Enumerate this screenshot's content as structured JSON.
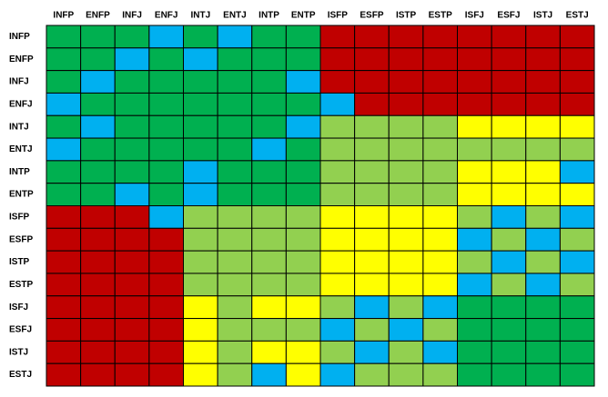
{
  "columns": [
    "INFP",
    "ENFP",
    "INFJ",
    "ENFJ",
    "INTJ",
    "ENTJ",
    "INTP",
    "ENTP",
    "ISFP",
    "ESFP",
    "ISTP",
    "ESTP",
    "ISFJ",
    "ESFJ",
    "ISTJ",
    "ESTJ"
  ],
  "rows": [
    {
      "label": "INFP",
      "cells": [
        "#00b050",
        "#00b050",
        "#00b050",
        "#00b0f0",
        "#00b050",
        "#00b0f0",
        "#00b050",
        "#00b050",
        "#c00000",
        "#c00000",
        "#c00000",
        "#c00000",
        "#c00000",
        "#c00000",
        "#c00000",
        "#c00000"
      ]
    },
    {
      "label": "ENFP",
      "cells": [
        "#00b050",
        "#00b050",
        "#00b0f0",
        "#00b050",
        "#00b0f0",
        "#00b050",
        "#00b050",
        "#00b050",
        "#c00000",
        "#c00000",
        "#c00000",
        "#c00000",
        "#c00000",
        "#c00000",
        "#c00000",
        "#c00000"
      ]
    },
    {
      "label": "INFJ",
      "cells": [
        "#00b050",
        "#00b0f0",
        "#00b050",
        "#00b050",
        "#00b050",
        "#00b050",
        "#00b050",
        "#00b0f0",
        "#c00000",
        "#c00000",
        "#c00000",
        "#c00000",
        "#c00000",
        "#c00000",
        "#c00000",
        "#c00000"
      ]
    },
    {
      "label": "ENFJ",
      "cells": [
        "#00b0f0",
        "#00b050",
        "#00b050",
        "#00b050",
        "#00b050",
        "#00b050",
        "#00b050",
        "#00b050",
        "#00b0f0",
        "#c00000",
        "#c00000",
        "#c00000",
        "#c00000",
        "#c00000",
        "#c00000",
        "#c00000"
      ]
    },
    {
      "label": "INTJ",
      "cells": [
        "#00b050",
        "#00b0f0",
        "#00b050",
        "#00b050",
        "#00b050",
        "#00b050",
        "#00b050",
        "#00b0f0",
        "#92d050",
        "#92d050",
        "#92d050",
        "#92d050",
        "#ffff00",
        "#ffff00",
        "#ffff00",
        "#ffff00"
      ]
    },
    {
      "label": "ENTJ",
      "cells": [
        "#00b0f0",
        "#00b050",
        "#00b050",
        "#00b050",
        "#00b050",
        "#00b050",
        "#00b0f0",
        "#00b050",
        "#92d050",
        "#92d050",
        "#92d050",
        "#92d050",
        "#92d050",
        "#92d050",
        "#92d050",
        "#92d050"
      ]
    },
    {
      "label": "INTP",
      "cells": [
        "#00b050",
        "#00b050",
        "#00b050",
        "#00b050",
        "#00b0f0",
        "#00b050",
        "#00b050",
        "#00b050",
        "#92d050",
        "#92d050",
        "#92d050",
        "#92d050",
        "#ffff00",
        "#ffff00",
        "#ffff00",
        "#00b0f0"
      ]
    },
    {
      "label": "ENTP",
      "cells": [
        "#00b050",
        "#00b050",
        "#00b0f0",
        "#00b050",
        "#00b0f0",
        "#00b050",
        "#00b050",
        "#00b050",
        "#92d050",
        "#92d050",
        "#92d050",
        "#92d050",
        "#ffff00",
        "#ffff00",
        "#ffff00",
        "#ffff00"
      ]
    },
    {
      "label": "ISFP",
      "cells": [
        "#c00000",
        "#c00000",
        "#c00000",
        "#00b0f0",
        "#92d050",
        "#92d050",
        "#92d050",
        "#92d050",
        "#ffff00",
        "#ffff00",
        "#ffff00",
        "#ffff00",
        "#92d050",
        "#00b0f0",
        "#92d050",
        "#00b0f0"
      ]
    },
    {
      "label": "ESFP",
      "cells": [
        "#c00000",
        "#c00000",
        "#c00000",
        "#c00000",
        "#92d050",
        "#92d050",
        "#92d050",
        "#92d050",
        "#ffff00",
        "#ffff00",
        "#ffff00",
        "#ffff00",
        "#00b0f0",
        "#92d050",
        "#00b0f0",
        "#92d050"
      ]
    },
    {
      "label": "ISTP",
      "cells": [
        "#c00000",
        "#c00000",
        "#c00000",
        "#c00000",
        "#92d050",
        "#92d050",
        "#92d050",
        "#92d050",
        "#ffff00",
        "#ffff00",
        "#ffff00",
        "#ffff00",
        "#92d050",
        "#00b0f0",
        "#92d050",
        "#00b0f0"
      ]
    },
    {
      "label": "ESTP",
      "cells": [
        "#c00000",
        "#c00000",
        "#c00000",
        "#c00000",
        "#92d050",
        "#92d050",
        "#92d050",
        "#92d050",
        "#ffff00",
        "#ffff00",
        "#ffff00",
        "#ffff00",
        "#00b0f0",
        "#92d050",
        "#00b0f0",
        "#92d050"
      ]
    },
    {
      "label": "ISFJ",
      "cells": [
        "#c00000",
        "#c00000",
        "#c00000",
        "#c00000",
        "#ffff00",
        "#92d050",
        "#ffff00",
        "#ffff00",
        "#92d050",
        "#00b0f0",
        "#92d050",
        "#00b0f0",
        "#00b050",
        "#00b050",
        "#00b050",
        "#00b050"
      ]
    },
    {
      "label": "ESFJ",
      "cells": [
        "#c00000",
        "#c00000",
        "#c00000",
        "#c00000",
        "#ffff00",
        "#92d050",
        "#92d050",
        "#92d050",
        "#00b0f0",
        "#92d050",
        "#00b0f0",
        "#92d050",
        "#00b050",
        "#00b050",
        "#00b050",
        "#00b050"
      ]
    },
    {
      "label": "ISTJ",
      "cells": [
        "#c00000",
        "#c00000",
        "#c00000",
        "#c00000",
        "#ffff00",
        "#92d050",
        "#ffff00",
        "#ffff00",
        "#92d050",
        "#00b0f0",
        "#92d050",
        "#00b0f0",
        "#00b050",
        "#00b050",
        "#00b050",
        "#00b050"
      ]
    },
    {
      "label": "ESTJ",
      "cells": [
        "#c00000",
        "#c00000",
        "#c00000",
        "#c00000",
        "#ffff00",
        "#92d050",
        "#00b0f0",
        "#ffff00",
        "#00b0f0",
        "#92d050",
        "#92d050",
        "#92d050",
        "#00b050",
        "#00b050",
        "#00b050",
        "#00b050"
      ]
    }
  ]
}
